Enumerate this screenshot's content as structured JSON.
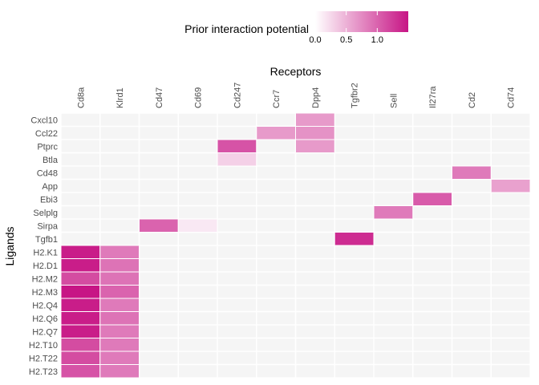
{
  "chart_data": {
    "type": "heatmap",
    "title": "",
    "xlabel": "Receptors",
    "ylabel": "Ligands",
    "x_axis_position": "top",
    "grid": true,
    "background_color": "#f5f5f5",
    "tile_border_color": "#ffffff",
    "color_low": "#ffffff",
    "color_high": "#c71585",
    "color_range": [
      0,
      1.5
    ],
    "legend": {
      "title": "Prior interaction potential",
      "placement": "top",
      "ticks": [
        0.0,
        0.5,
        1.0
      ],
      "tick_labels": [
        "0.0",
        "0.5",
        "1.0"
      ]
    },
    "x_categories": [
      "Cd8a",
      "Klrd1",
      "Cd47",
      "Cd69",
      "Cd247",
      "Ccr7",
      "Dpp4",
      "Tgfbr2",
      "Sell",
      "Il27ra",
      "Cd2",
      "Cd74"
    ],
    "y_categories": [
      "Cxcl10",
      "Ccl22",
      "Ptprc",
      "Btla",
      "Cd48",
      "App",
      "Ebi3",
      "Selplg",
      "Sirpa",
      "Tgfb1",
      "H2.K1",
      "H2.D1",
      "H2.M2",
      "H2.M3",
      "H2.Q4",
      "H2.Q6",
      "H2.Q7",
      "H2.T10",
      "H2.T22",
      "H2.T23"
    ],
    "cells": [
      {
        "x": "Dpp4",
        "y": "Cxcl10",
        "value": 0.65
      },
      {
        "x": "Ccr7",
        "y": "Ccl22",
        "value": 0.65
      },
      {
        "x": "Dpp4",
        "y": "Ccl22",
        "value": 0.7
      },
      {
        "x": "Cd247",
        "y": "Ptprc",
        "value": 1.1
      },
      {
        "x": "Dpp4",
        "y": "Ptprc",
        "value": 0.65
      },
      {
        "x": "Cd247",
        "y": "Btla",
        "value": 0.3
      },
      {
        "x": "Cd2",
        "y": "Cd48",
        "value": 0.85
      },
      {
        "x": "Cd74",
        "y": "App",
        "value": 0.6
      },
      {
        "x": "Il27ra",
        "y": "Ebi3",
        "value": 1.05
      },
      {
        "x": "Sell",
        "y": "Selplg",
        "value": 0.85
      },
      {
        "x": "Cd47",
        "y": "Sirpa",
        "value": 1.0
      },
      {
        "x": "Cd69",
        "y": "Sirpa",
        "value": 0.15
      },
      {
        "x": "Tgfbr2",
        "y": "Tgfb1",
        "value": 1.35
      },
      {
        "x": "Cd8a",
        "y": "H2.K1",
        "value": 1.45
      },
      {
        "x": "Klrd1",
        "y": "H2.K1",
        "value": 0.85
      },
      {
        "x": "Cd8a",
        "y": "H2.D1",
        "value": 1.45
      },
      {
        "x": "Klrd1",
        "y": "H2.D1",
        "value": 0.9
      },
      {
        "x": "Cd8a",
        "y": "H2.M2",
        "value": 1.15
      },
      {
        "x": "Klrd1",
        "y": "H2.M2",
        "value": 0.9
      },
      {
        "x": "Cd8a",
        "y": "H2.M3",
        "value": 1.5
      },
      {
        "x": "Klrd1",
        "y": "H2.M3",
        "value": 1.0
      },
      {
        "x": "Cd8a",
        "y": "H2.Q4",
        "value": 1.45
      },
      {
        "x": "Klrd1",
        "y": "H2.Q4",
        "value": 0.85
      },
      {
        "x": "Cd8a",
        "y": "H2.Q6",
        "value": 1.45
      },
      {
        "x": "Klrd1",
        "y": "H2.Q6",
        "value": 0.9
      },
      {
        "x": "Cd8a",
        "y": "H2.Q7",
        "value": 1.45
      },
      {
        "x": "Klrd1",
        "y": "H2.Q7",
        "value": 0.85
      },
      {
        "x": "Cd8a",
        "y": "H2.T10",
        "value": 1.15
      },
      {
        "x": "Klrd1",
        "y": "H2.T10",
        "value": 0.85
      },
      {
        "x": "Cd8a",
        "y": "H2.T22",
        "value": 1.15
      },
      {
        "x": "Klrd1",
        "y": "H2.T22",
        "value": 0.85
      },
      {
        "x": "Cd8a",
        "y": "H2.T23",
        "value": 1.1
      },
      {
        "x": "Klrd1",
        "y": "H2.T23",
        "value": 0.85
      }
    ]
  }
}
